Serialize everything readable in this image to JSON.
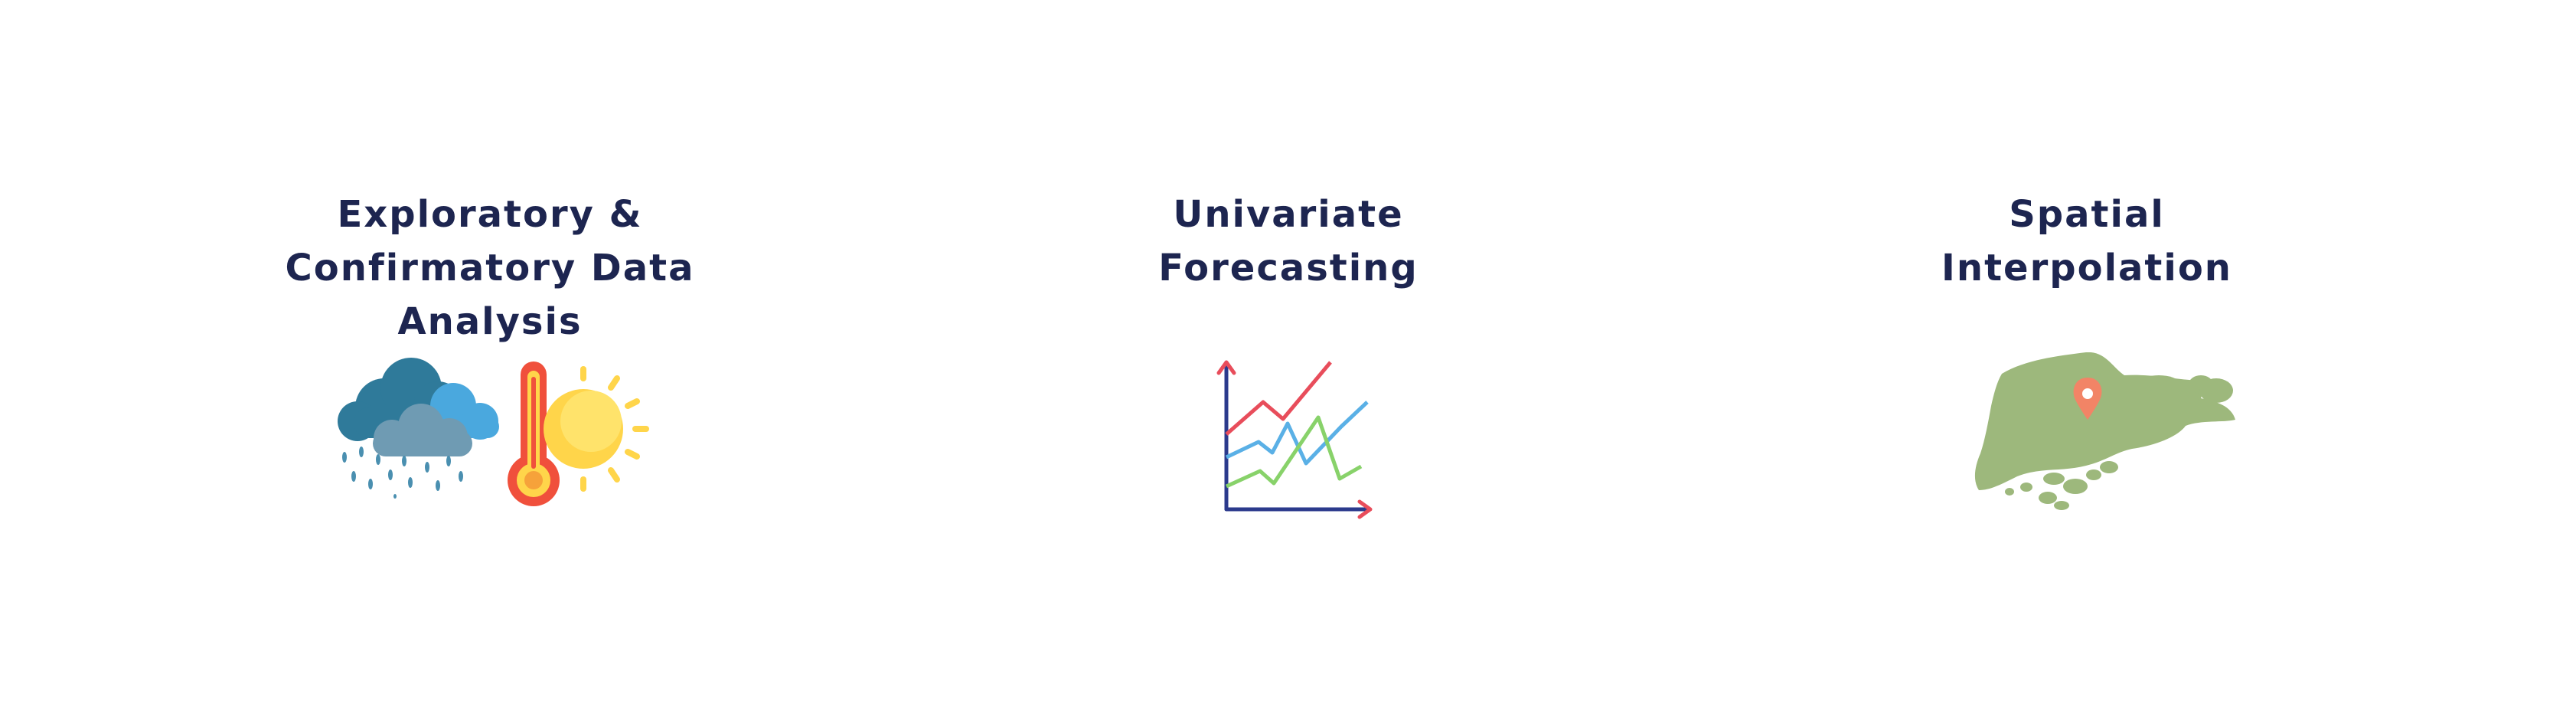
{
  "features": [
    {
      "title_lines": [
        "Exploratory &",
        "Confirmatory Data",
        "Analysis"
      ],
      "icon": "weather-icon"
    },
    {
      "title_lines": [
        "Univariate",
        "Forecasting"
      ],
      "icon": "line-chart-icon"
    },
    {
      "title_lines": [
        "Spatial",
        "Interpolation"
      ],
      "icon": "singapore-map-icon"
    }
  ],
  "colors": {
    "title": "#1d2550",
    "cloud_dark": "#2f7a9a",
    "cloud_light": "#4aa8de",
    "cloud_gray": "#6f9bb3",
    "thermo_red": "#f0503c",
    "sun_yellow": "#ffd54a",
    "chart_axis": "#2b3a8c",
    "chart_red": "#e84d5b",
    "chart_blue": "#5ab0e6",
    "chart_green": "#88d26a",
    "map_green": "#9db87c",
    "pin": "#f28466"
  }
}
